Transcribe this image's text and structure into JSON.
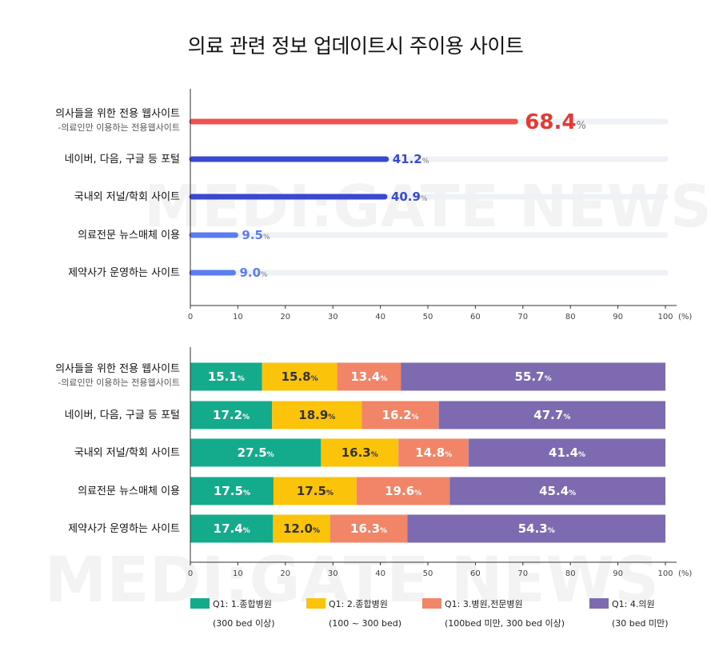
{
  "title": "의료 관련 정보 업데이트시 주이용 사이트",
  "watermark": "MEDI:GATE NEWS",
  "chart_data": [
    {
      "type": "bar",
      "orientation": "horizontal",
      "categories": [
        "의사들을 위한 전용 웹사이트",
        "네이버, 다음, 구글 등 포털",
        "국내외 저널/학회 사이트",
        "의료전문 뉴스매체 이용",
        "제약사가 운영하는 사이트"
      ],
      "category_note": "-의료인만 이용하는 전용웹사이트",
      "values": [
        68.4,
        41.2,
        40.9,
        9.5,
        9.0
      ],
      "value_labels": [
        "68.4",
        "41.2",
        "40.9",
        "9.5",
        "9.0"
      ],
      "value_suffix": "%",
      "colors": [
        "#ef5350",
        "#3949d1",
        "#3949d1",
        "#5b7df0",
        "#5b7df0"
      ],
      "label_colors": [
        "#e53935",
        "#3949d1",
        "#3949d1",
        "#5b7df0",
        "#5b7df0"
      ],
      "xlim": [
        0,
        100
      ],
      "xticks": [
        "0",
        "10",
        "20",
        "30",
        "40",
        "50",
        "60",
        "70",
        "80",
        "90",
        "100"
      ],
      "xunit": "(%)"
    },
    {
      "type": "bar",
      "orientation": "horizontal",
      "stacked": true,
      "categories": [
        "의사들을 위한 전용 웹사이트",
        "네이버, 다음, 구글 등 포털",
        "국내외 저널/학회 사이트",
        "의료전문 뉴스매체 이용",
        "제약사가 운영하는 사이트"
      ],
      "category_note": "-의료인만 이용하는 전용웹사이트",
      "series": [
        {
          "name": "Q1: 1.종합병원",
          "note": "(300 bed 이상)",
          "color": "#13ab8c",
          "values": [
            15.1,
            17.2,
            27.5,
            17.5,
            17.4
          ],
          "labels": [
            "15.1",
            "17.2",
            "27.5",
            "17.5",
            "17.4"
          ]
        },
        {
          "name": "Q1: 2.종합병원",
          "note": "(100 ~ 300 bed)",
          "color": "#fcc30b",
          "values": [
            15.8,
            18.9,
            16.3,
            17.5,
            12.0
          ],
          "labels": [
            "15.8",
            "18.9",
            "16.3",
            "17.5",
            "12.0"
          ]
        },
        {
          "name": "Q1: 3.병원,전문병원",
          "note": "(100bed 미만, 300 bed 이상)",
          "color": "#f28468",
          "values": [
            13.4,
            16.2,
            14.8,
            19.6,
            16.3
          ],
          "labels": [
            "13.4",
            "16.2",
            "14.8",
            "19.6",
            "16.3"
          ]
        },
        {
          "name": "Q1: 4.의원",
          "note": "(30 bed 미만)",
          "color": "#7e6ab0",
          "values": [
            55.7,
            47.7,
            41.4,
            45.4,
            54.3
          ],
          "labels": [
            "55.7",
            "47.7",
            "41.4",
            "45.4",
            "54.3"
          ]
        }
      ],
      "label_colors": [
        "#ffffff",
        "#333333",
        "#ffffff",
        "#ffffff"
      ],
      "value_suffix": "%",
      "xlim": [
        0,
        100
      ],
      "xticks": [
        "0",
        "10",
        "20",
        "30",
        "40",
        "50",
        "60",
        "70",
        "80",
        "90",
        "100"
      ],
      "xunit": "(%)",
      "legend_position": "bottom"
    }
  ]
}
